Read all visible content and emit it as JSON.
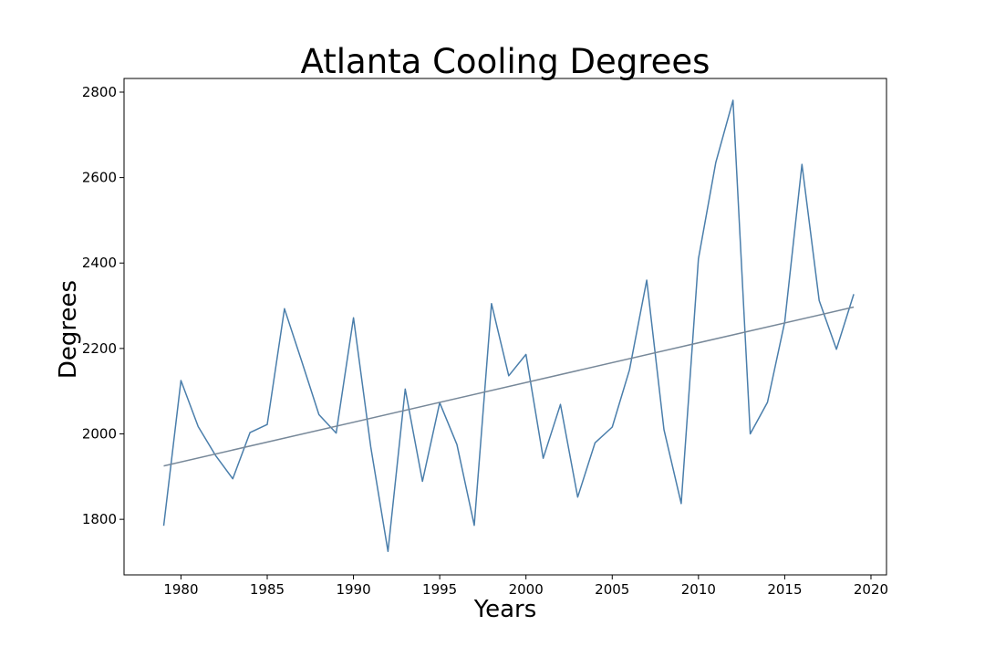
{
  "chart_data": {
    "type": "line",
    "title": "Atlanta Cooling Degrees",
    "xlabel": "Years",
    "ylabel": "Degrees",
    "xlim": [
      1976.7,
      2020.9
    ],
    "ylim": [
      1670,
      2832
    ],
    "xticks": [
      1980,
      1985,
      1990,
      1995,
      2000,
      2005,
      2010,
      2015,
      2020
    ],
    "yticks": [
      1800,
      2000,
      2200,
      2400,
      2600,
      2800
    ],
    "grid": false,
    "series": [
      {
        "type": "line",
        "color": "#4a7eab",
        "x": [
          1979,
          1980,
          1981,
          1982,
          1983,
          1984,
          1985,
          1986,
          1987,
          1988,
          1989,
          1990,
          1991,
          1992,
          1993,
          1994,
          1995,
          1996,
          1997,
          1998,
          1999,
          2000,
          2001,
          2002,
          2003,
          2004,
          2005,
          2006,
          2007,
          2008,
          2009,
          2010,
          2011,
          2012,
          2013,
          2014,
          2015,
          2016,
          2017,
          2018,
          2019
        ],
        "y": [
          1785,
          2125,
          2017,
          1950,
          1895,
          2003,
          2022,
          2293,
          2170,
          2045,
          2002,
          2272,
          1970,
          1725,
          2105,
          1889,
          2073,
          1975,
          1786,
          2305,
          2136,
          2186,
          1943,
          2069,
          1852,
          1979,
          2016,
          2150,
          2360,
          2010,
          1837,
          2410,
          2635,
          2781,
          2000,
          2074,
          2262,
          2631,
          2312,
          2198,
          2327
        ]
      },
      {
        "type": "trend",
        "color": "#778899",
        "x": [
          1979,
          2019
        ],
        "y": [
          1925,
          2297
        ]
      }
    ]
  }
}
